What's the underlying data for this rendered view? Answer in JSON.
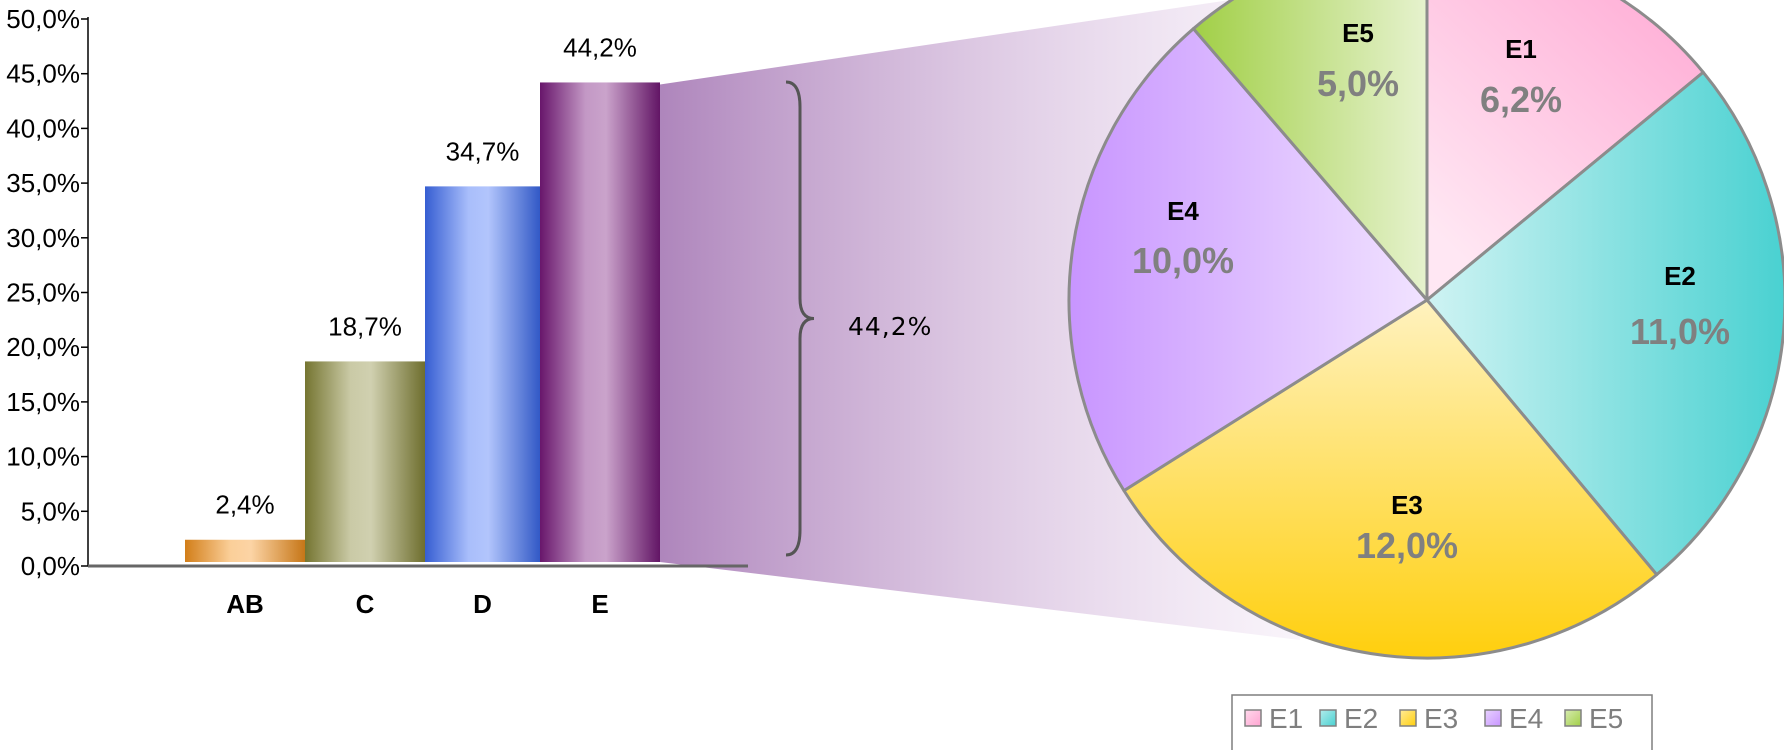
{
  "chart_data": [
    {
      "type": "bar",
      "categories": [
        "AB",
        "C",
        "D",
        "E"
      ],
      "values": [
        2.4,
        18.7,
        34.7,
        44.2
      ],
      "value_labels": [
        "2,4%",
        "18,7%",
        "34,7%",
        "44,2%"
      ],
      "ylim": [
        0,
        50
      ],
      "yticks": [
        "0,0%",
        "5,0%",
        "10,0%",
        "15,0%",
        "20,0%",
        "25,0%",
        "30,0%",
        "35,0%",
        "40,0%",
        "45,0%",
        "50,0%"
      ],
      "colors": [
        "#f7941d",
        "#8a8a3a",
        "#3f6ff7",
        "#7a1a7e"
      ],
      "title": "",
      "xlabel": "",
      "ylabel": ""
    },
    {
      "type": "pie",
      "breakout_of": "E",
      "breakout_label": "44,2%",
      "categories": [
        "E1",
        "E2",
        "E3",
        "E4",
        "E5"
      ],
      "values": [
        6.2,
        11.0,
        12.0,
        10.0,
        5.0
      ],
      "value_labels": [
        "6,2%",
        "11,0%",
        "12,0%",
        "10,0%",
        "5,0%"
      ],
      "colors": [
        "#ff9fcf",
        "#3fcfcf",
        "#ffcc00",
        "#c58fff",
        "#9ccc3c"
      ],
      "legend": {
        "position": "bottom",
        "entries": [
          "E1",
          "E2",
          "E3",
          "E4",
          "E5"
        ]
      }
    }
  ]
}
